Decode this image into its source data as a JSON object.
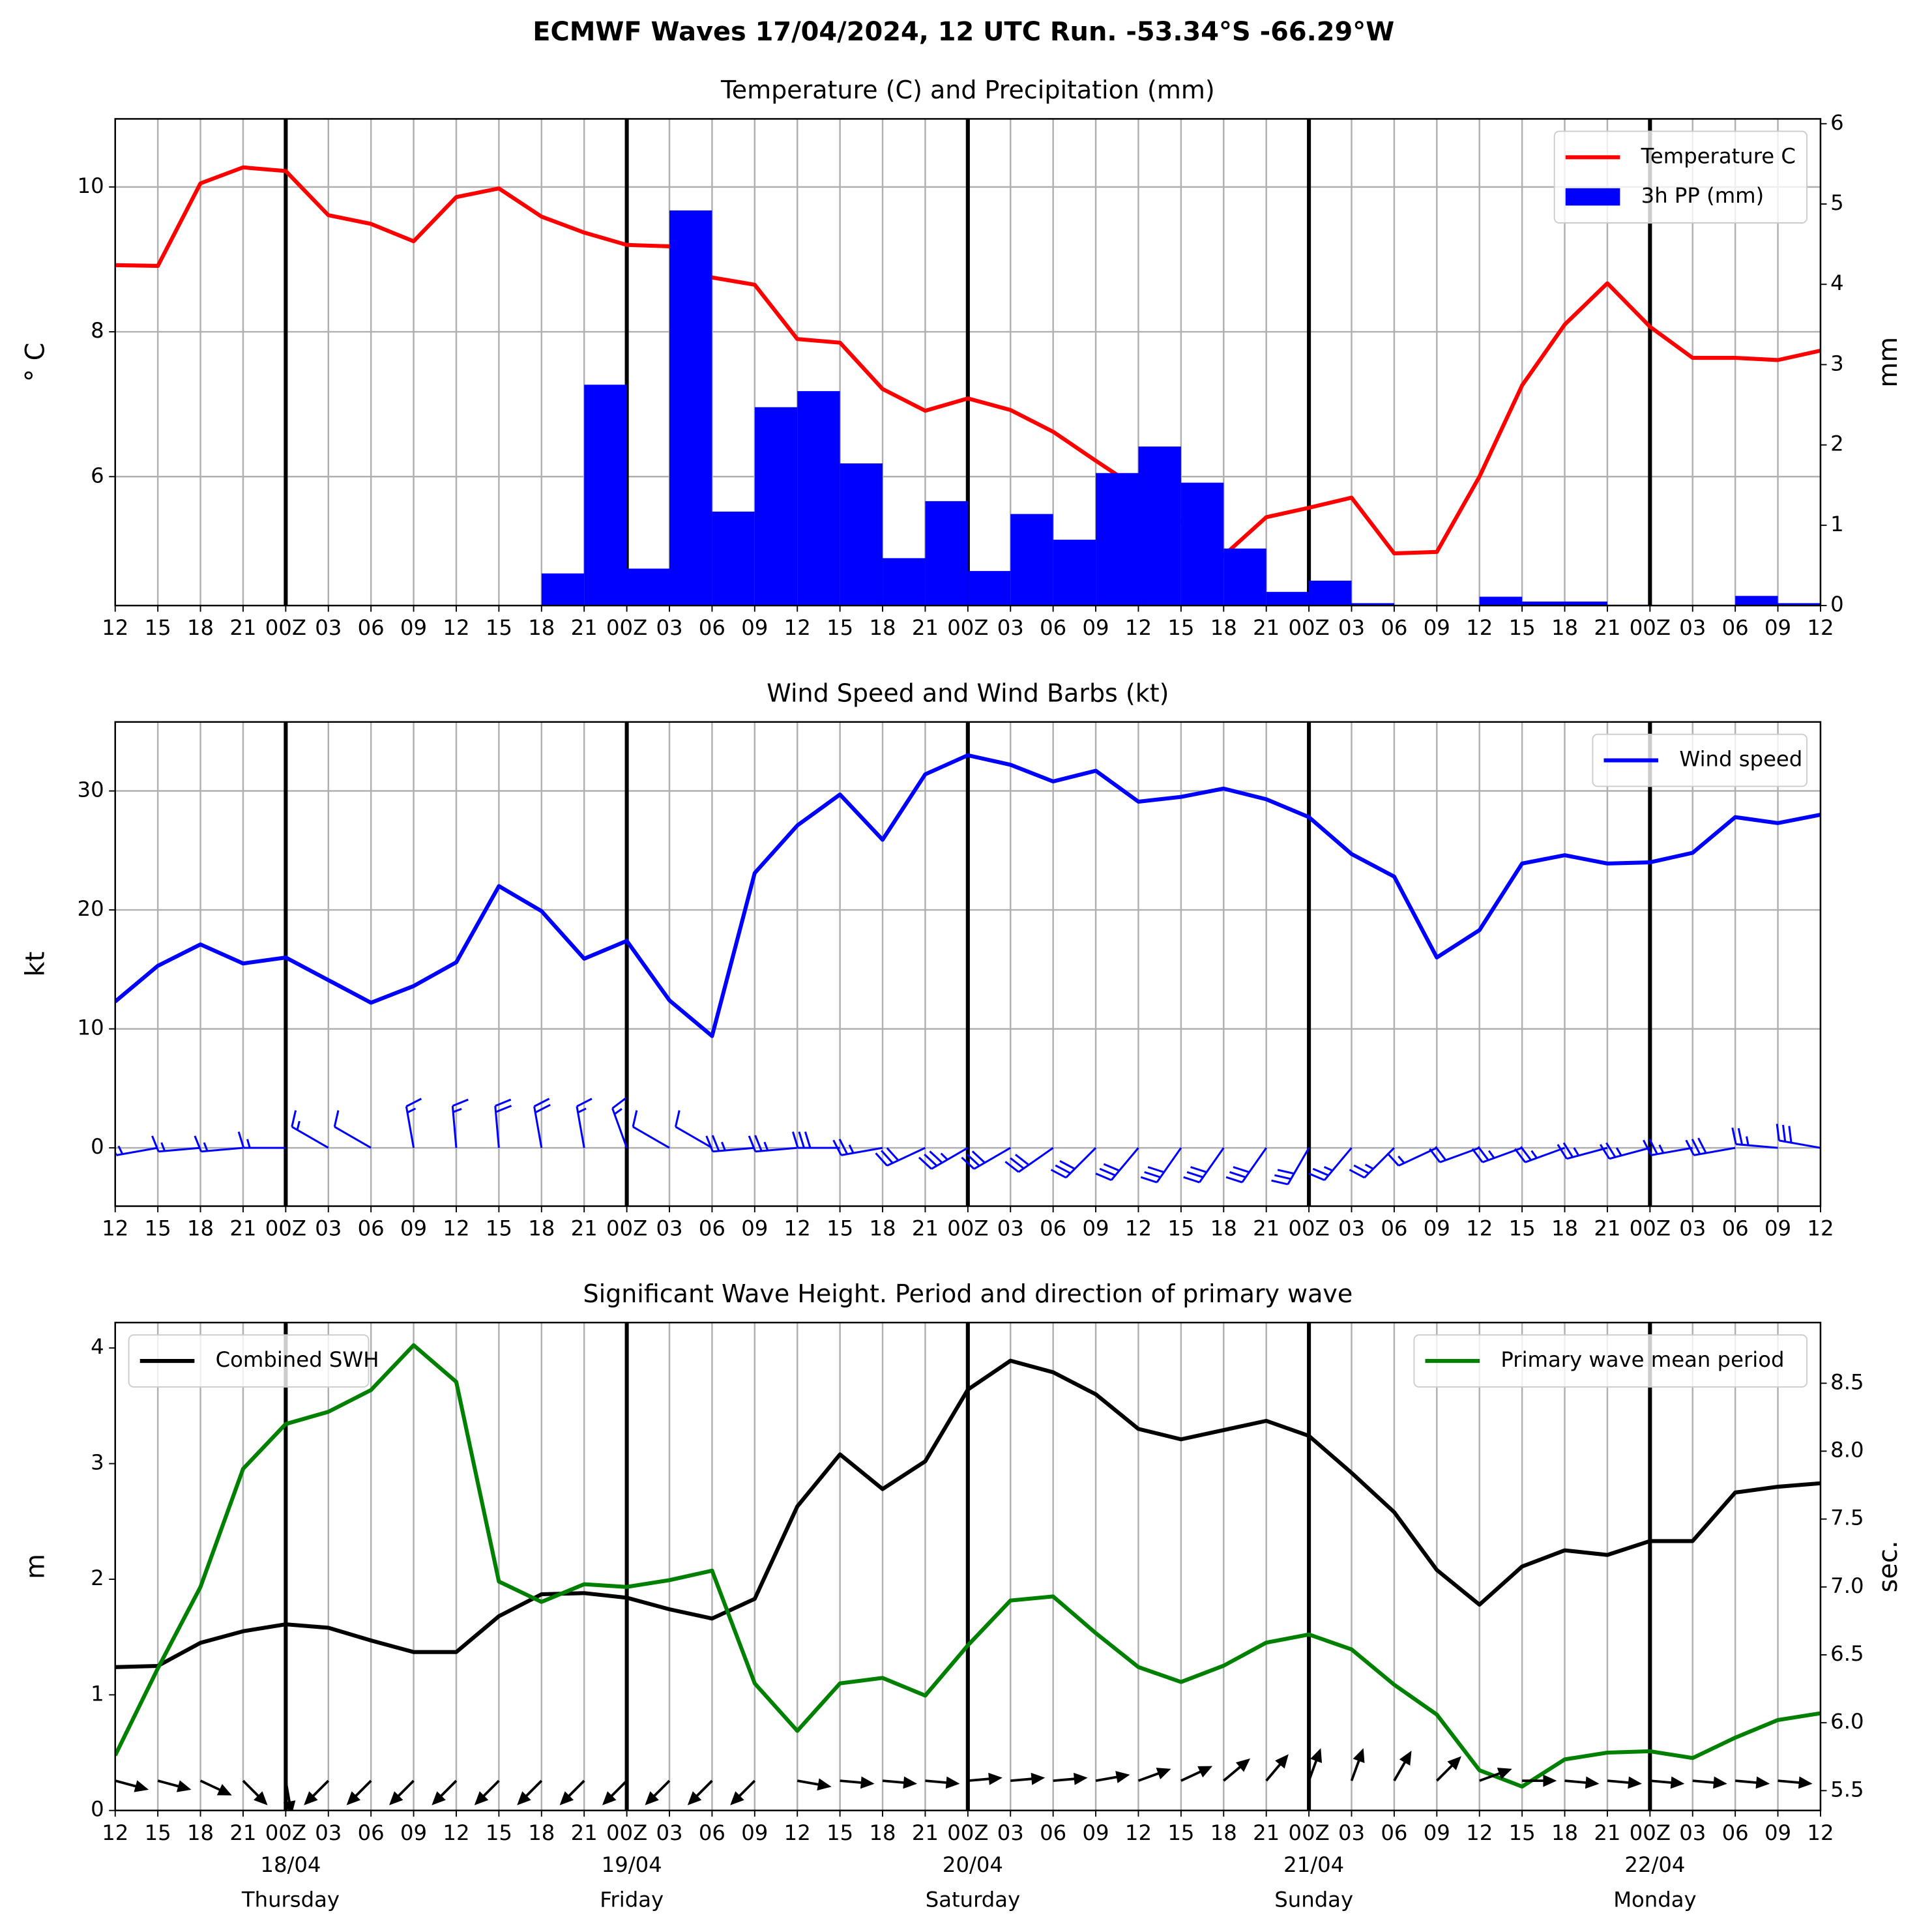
{
  "title": "ECMWF Waves 17/04/2024, 12 UTC Run. -53.34°S -66.29°W",
  "chart_data": [
    {
      "type": "line",
      "title": "Temperature (C) and Precipitation (mm)",
      "ylabel": "$^\\circ$C",
      "y2label": "mm",
      "categories": [
        "12",
        "15",
        "18",
        "21",
        "00Z",
        "03",
        "06",
        "09",
        "12",
        "15",
        "18",
        "21",
        "00Z",
        "03",
        "06",
        "09",
        "12",
        "15",
        "18",
        "21",
        "00Z",
        "03",
        "06",
        "09",
        "12",
        "15",
        "18",
        "21",
        "00Z",
        "03",
        "06",
        "09",
        "12",
        "15",
        "18",
        "21",
        "00Z",
        "03",
        "06",
        "09",
        "12"
      ],
      "ylim": [
        4.22,
        10.94
      ],
      "yticks": [
        6,
        8,
        10
      ],
      "y2lim": [
        0,
        6.06
      ],
      "y2ticks": [
        0,
        1,
        2,
        3,
        4,
        5,
        6
      ],
      "grid": "both",
      "legend": "upper right",
      "series": [
        {
          "name": "Temperature C",
          "color": "#ff0000",
          "values": [
            8.92,
            8.91,
            10.05,
            10.27,
            10.22,
            9.61,
            9.49,
            9.25,
            9.86,
            9.98,
            9.59,
            9.37,
            9.2,
            9.18,
            8.75,
            8.65,
            7.9,
            7.85,
            7.21,
            6.91,
            7.08,
            6.92,
            6.62,
            6.22,
            5.83,
            5.38,
            4.91,
            5.44,
            5.57,
            5.71,
            4.94,
            4.96,
            6.0,
            7.26,
            8.1,
            8.67,
            8.07,
            7.64,
            7.64,
            7.61,
            7.74
          ]
        },
        {
          "name": "3h PP (mm)",
          "color": "#0000ff",
          "type": "bar",
          "axis": "y2",
          "values": [
            null,
            0,
            0,
            0,
            0,
            0,
            0,
            0,
            0,
            0,
            0,
            0.4,
            2.75,
            0.46,
            4.92,
            1.17,
            2.47,
            2.67,
            1.77,
            0.59,
            1.3,
            0.43,
            1.14,
            0.82,
            1.65,
            1.98,
            1.53,
            0.71,
            0.17,
            0.31,
            0.03,
            0,
            0,
            0.11,
            0.05,
            0.05,
            0.01,
            0,
            0,
            0.12,
            0.03
          ]
        }
      ]
    },
    {
      "type": "line",
      "title": "Wind Speed and Wind Barbs (kt)",
      "ylabel": "kt",
      "categories": [
        "12",
        "15",
        "18",
        "21",
        "00Z",
        "03",
        "06",
        "09",
        "12",
        "15",
        "18",
        "21",
        "00Z",
        "03",
        "06",
        "09",
        "12",
        "15",
        "18",
        "21",
        "00Z",
        "03",
        "06",
        "09",
        "12",
        "15",
        "18",
        "21",
        "00Z",
        "03",
        "06",
        "09",
        "12",
        "15",
        "18",
        "21",
        "00Z",
        "03",
        "06",
        "09",
        "12"
      ],
      "ylim": [
        -4.9,
        35.8
      ],
      "yticks": [
        0,
        10,
        20,
        30
      ],
      "grid": "both",
      "legend": "upper right",
      "series": [
        {
          "name": "Wind speed",
          "color": "#0000ff",
          "values": [
            12.3,
            15.3,
            17.1,
            15.5,
            16.0,
            14.1,
            12.2,
            13.6,
            15.6,
            22.0,
            19.9,
            15.9,
            17.4,
            12.4,
            9.4,
            23.1,
            27.1,
            29.7,
            25.9,
            31.4,
            33.0,
            32.2,
            30.8,
            31.7,
            29.1,
            29.5,
            30.2,
            29.3,
            27.8,
            24.7,
            22.8,
            16.0,
            18.3,
            23.9,
            24.6,
            23.9,
            24.0,
            24.8,
            27.8,
            27.3,
            28.0
          ]
        }
      ],
      "wind_direction": [
        255,
        260,
        265,
        265,
        270,
        300,
        300,
        350,
        355,
        355,
        350,
        350,
        340,
        300,
        300,
        265,
        265,
        270,
        260,
        245,
        240,
        240,
        235,
        225,
        220,
        215,
        215,
        215,
        210,
        220,
        225,
        245,
        250,
        250,
        250,
        255,
        255,
        260,
        260,
        275,
        280
      ],
      "barb_color": "#0000ff"
    },
    {
      "type": "line",
      "title": "Significant Wave Height. Period and direction of primary wave",
      "ylabel": "m",
      "y2label": "sec.",
      "y2label_color": "#008000",
      "categories": [
        "12",
        "15",
        "18",
        "21",
        "00Z",
        "03",
        "06",
        "09",
        "12",
        "15",
        "18",
        "21",
        "00Z",
        "03",
        "06",
        "09",
        "12",
        "15",
        "18",
        "21",
        "00Z",
        "03",
        "06",
        "09",
        "12",
        "15",
        "18",
        "21",
        "00Z",
        "03",
        "06",
        "09",
        "12",
        "15",
        "18",
        "21",
        "00Z",
        "03",
        "06",
        "09",
        "12"
      ],
      "ylim": [
        0,
        4.22
      ],
      "yticks": [
        0,
        1,
        2,
        3,
        4
      ],
      "y2lim": [
        5.354,
        8.947
      ],
      "y2ticks": [
        5.5,
        {
          "value": 6,
          "label": "6.0"
        },
        6.5,
        {
          "value": 7,
          "label": "7.0"
        },
        7.5,
        {
          "value": 8,
          "label": "8.0"
        },
        8.5
      ],
      "grid": "x",
      "series": [
        {
          "name": "Combined SWH",
          "color": "#000000",
          "legend": "upper left",
          "values": [
            1.24,
            1.25,
            1.45,
            1.55,
            1.61,
            1.58,
            1.47,
            1.37,
            1.37,
            1.68,
            1.87,
            1.88,
            1.84,
            1.74,
            1.66,
            1.83,
            2.63,
            3.08,
            2.78,
            3.02,
            3.64,
            3.89,
            3.79,
            3.6,
            3.3,
            3.21,
            3.29,
            3.37,
            3.24,
            2.92,
            2.58,
            2.08,
            1.78,
            2.11,
            2.25,
            2.21,
            2.33,
            2.33,
            2.75,
            2.8,
            2.83
          ]
        },
        {
          "name": "Primary wave mean period",
          "color": "#008000",
          "axis": "y2",
          "legend": "upper right",
          "values": [
            5.76,
            6.4,
            7.0,
            7.87,
            8.2,
            8.29,
            8.45,
            8.78,
            8.51,
            7.04,
            6.89,
            7.02,
            7.0,
            7.05,
            7.12,
            6.29,
            5.94,
            6.29,
            6.33,
            6.2,
            6.57,
            6.9,
            6.93,
            6.66,
            6.41,
            6.3,
            6.42,
            6.59,
            6.65,
            6.54,
            6.28,
            6.06,
            5.65,
            5.53,
            5.73,
            5.78,
            5.79,
            5.74,
            5.89,
            6.02,
            6.07
          ]
        }
      ],
      "wave_direction": [
        285,
        285,
        295,
        315,
        350,
        45,
        45,
        45,
        45,
        45,
        45,
        45,
        45,
        45,
        45,
        45,
        280,
        275,
        275,
        275,
        265,
        265,
        265,
        260,
        250,
        245,
        230,
        220,
        200,
        200,
        210,
        225,
        250,
        270,
        275,
        275,
        275,
        275,
        275,
        275,
        275
      ],
      "day_labels": [
        {
          "date": "18/04",
          "day": "Thursday"
        },
        {
          "date": "19/04",
          "day": "Friday"
        },
        {
          "date": "20/04",
          "day": "Saturday"
        },
        {
          "date": "21/04",
          "day": "Sunday"
        },
        {
          "date": "22/04",
          "day": "Monday"
        }
      ]
    }
  ]
}
